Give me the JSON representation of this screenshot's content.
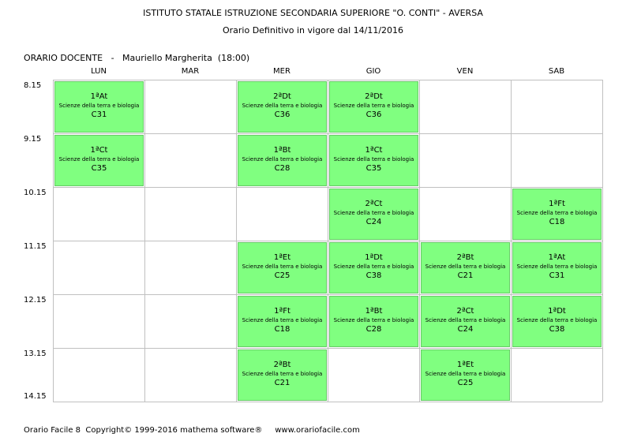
{
  "header": {
    "school": "ISTITUTO STATALE ISTRUZIONE SECONDARIA SUPERIORE \"O. CONTI\" - AVERSA",
    "schedule": "Orario Definitivo in vigore dal 14/11/2016"
  },
  "teacher_line": "ORARIO DOCENTE   -   Mauriello Margherita  (18:00)",
  "days": [
    "LUN",
    "MAR",
    "MER",
    "GIO",
    "VEN",
    "SAB"
  ],
  "hours": [
    "8.15",
    "9.15",
    "10.15",
    "11.15",
    "12.15",
    "13.15",
    "14.15"
  ],
  "lessons": [
    {
      "day": 0,
      "slot": 0,
      "class": "1ªAt",
      "subject": "Scienze della terra e biologia",
      "room": "C31"
    },
    {
      "day": 0,
      "slot": 1,
      "class": "1ªCt",
      "subject": "Scienze della terra e biologia",
      "room": "C35"
    },
    {
      "day": 2,
      "slot": 0,
      "class": "2ªDt",
      "subject": "Scienze della terra e biologia",
      "room": "C36"
    },
    {
      "day": 2,
      "slot": 1,
      "class": "1ªBt",
      "subject": "Scienze della terra e biologia",
      "room": "C28"
    },
    {
      "day": 2,
      "slot": 3,
      "class": "1ªEt",
      "subject": "Scienze della terra e biologia",
      "room": "C25"
    },
    {
      "day": 2,
      "slot": 4,
      "class": "1ªFt",
      "subject": "Scienze della terra e biologia",
      "room": "C18"
    },
    {
      "day": 2,
      "slot": 5,
      "class": "2ªBt",
      "subject": "Scienze della terra e biologia",
      "room": "C21"
    },
    {
      "day": 3,
      "slot": 0,
      "class": "2ªDt",
      "subject": "Scienze della terra e biologia",
      "room": "C36"
    },
    {
      "day": 3,
      "slot": 1,
      "class": "1ªCt",
      "subject": "Scienze della terra e biologia",
      "room": "C35"
    },
    {
      "day": 3,
      "slot": 2,
      "class": "2ªCt",
      "subject": "Scienze della terra e biologia",
      "room": "C24"
    },
    {
      "day": 3,
      "slot": 3,
      "class": "1ªDt",
      "subject": "Scienze della terra e biologia",
      "room": "C38"
    },
    {
      "day": 3,
      "slot": 4,
      "class": "1ªBt",
      "subject": "Scienze della terra e biologia",
      "room": "C28"
    },
    {
      "day": 4,
      "slot": 3,
      "class": "2ªBt",
      "subject": "Scienze della terra e biologia",
      "room": "C21"
    },
    {
      "day": 4,
      "slot": 4,
      "class": "2ªCt",
      "subject": "Scienze della terra e biologia",
      "room": "C24"
    },
    {
      "day": 4,
      "slot": 5,
      "class": "1ªEt",
      "subject": "Scienze della terra e biologia",
      "room": "C25"
    },
    {
      "day": 5,
      "slot": 2,
      "class": "1ªFt",
      "subject": "Scienze della terra e biologia",
      "room": "C18"
    },
    {
      "day": 5,
      "slot": 3,
      "class": "1ªAt",
      "subject": "Scienze della terra e biologia",
      "room": "C31"
    },
    {
      "day": 5,
      "slot": 4,
      "class": "1ªDt",
      "subject": "Scienze della terra e biologia",
      "room": "C38"
    }
  ],
  "footer": "Orario Facile 8  Copyright© 1999-2016 mathema software®     www.orariofacile.com"
}
